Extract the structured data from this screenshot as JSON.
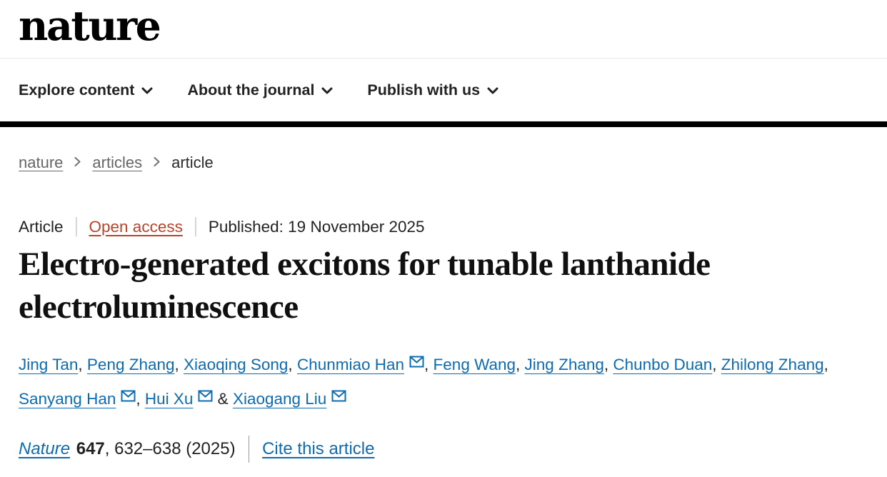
{
  "header": {
    "logo": "nature",
    "nav": [
      {
        "label": "Explore content"
      },
      {
        "label": "About the journal"
      },
      {
        "label": "Publish with us"
      }
    ]
  },
  "breadcrumb": {
    "items": [
      {
        "label": "nature"
      },
      {
        "label": "articles"
      },
      {
        "label": "article"
      }
    ]
  },
  "meta": {
    "type_label": "Article",
    "access_label": "Open access",
    "published_label": "Published: 19 November 2025"
  },
  "title": {
    "full": "Electro-generated excitons for tunable lanthanide electroluminescence"
  },
  "authors": {
    "list": [
      {
        "name": "Jing Tan",
        "email_icon": false
      },
      {
        "name": "Peng Zhang",
        "email_icon": false
      },
      {
        "name": "Xiaoqing Song",
        "email_icon": false
      },
      {
        "name": "Chunmiao Han",
        "email_icon": true
      },
      {
        "name": "Feng Wang",
        "email_icon": false
      },
      {
        "name": "Jing Zhang",
        "email_icon": false
      },
      {
        "name": "Chunbo Duan",
        "email_icon": false
      },
      {
        "name": "Zhilong Zhang",
        "email_icon": false
      },
      {
        "name": "Sanyang Han",
        "email_icon": true
      },
      {
        "name": "Hui Xu",
        "email_icon": true
      },
      {
        "name": "Xiaogang Liu",
        "email_icon": true
      }
    ],
    "separator": ", ",
    "last_separator": " & "
  },
  "citation": {
    "journal": "Nature",
    "volume": "647",
    "pages": ", 632–638 (2025)",
    "cite_link": "Cite this article"
  },
  "colors": {
    "link_blue": "#0d6cb1",
    "open_access_red": "#b9432a",
    "breadcrumb_gray": "#666666",
    "rule_black": "#000000"
  }
}
